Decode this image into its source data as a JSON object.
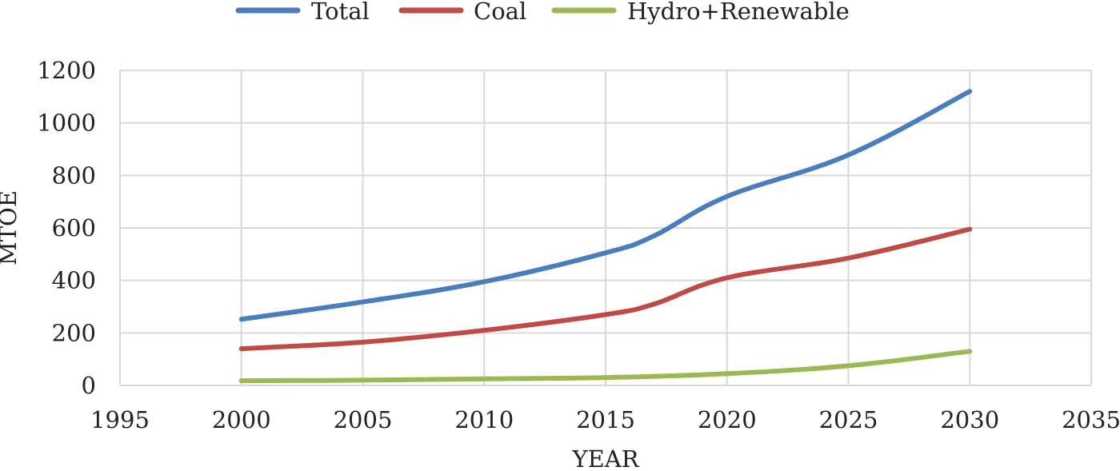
{
  "chart_data": {
    "type": "line",
    "title": "",
    "xlabel": "YEAR",
    "ylabel": "MTOE",
    "xlim": [
      1995,
      2035
    ],
    "ylim": [
      0,
      1200
    ],
    "xticks": [
      1995,
      2000,
      2005,
      2010,
      2015,
      2020,
      2025,
      2030,
      2035
    ],
    "yticks": [
      0,
      200,
      400,
      600,
      800,
      1000,
      1200
    ],
    "grid": true,
    "legend_position": "top",
    "series": [
      {
        "name": "Total",
        "color": "#4a7ebb",
        "x": [
          2000,
          2005,
          2010,
          2015,
          2017,
          2020,
          2025,
          2030
        ],
        "y": [
          252,
          318,
          395,
          505,
          570,
          720,
          878,
          1120
        ]
      },
      {
        "name": "Coal",
        "color": "#be4b48",
        "x": [
          2000,
          2005,
          2010,
          2015,
          2017,
          2020,
          2025,
          2030
        ],
        "y": [
          140,
          165,
          210,
          270,
          310,
          410,
          485,
          595
        ]
      },
      {
        "name": "Hydro+Renewable",
        "color": "#98b954",
        "x": [
          2000,
          2005,
          2010,
          2015,
          2020,
          2025,
          2030
        ],
        "y": [
          18,
          20,
          25,
          30,
          45,
          75,
          130
        ]
      }
    ]
  }
}
